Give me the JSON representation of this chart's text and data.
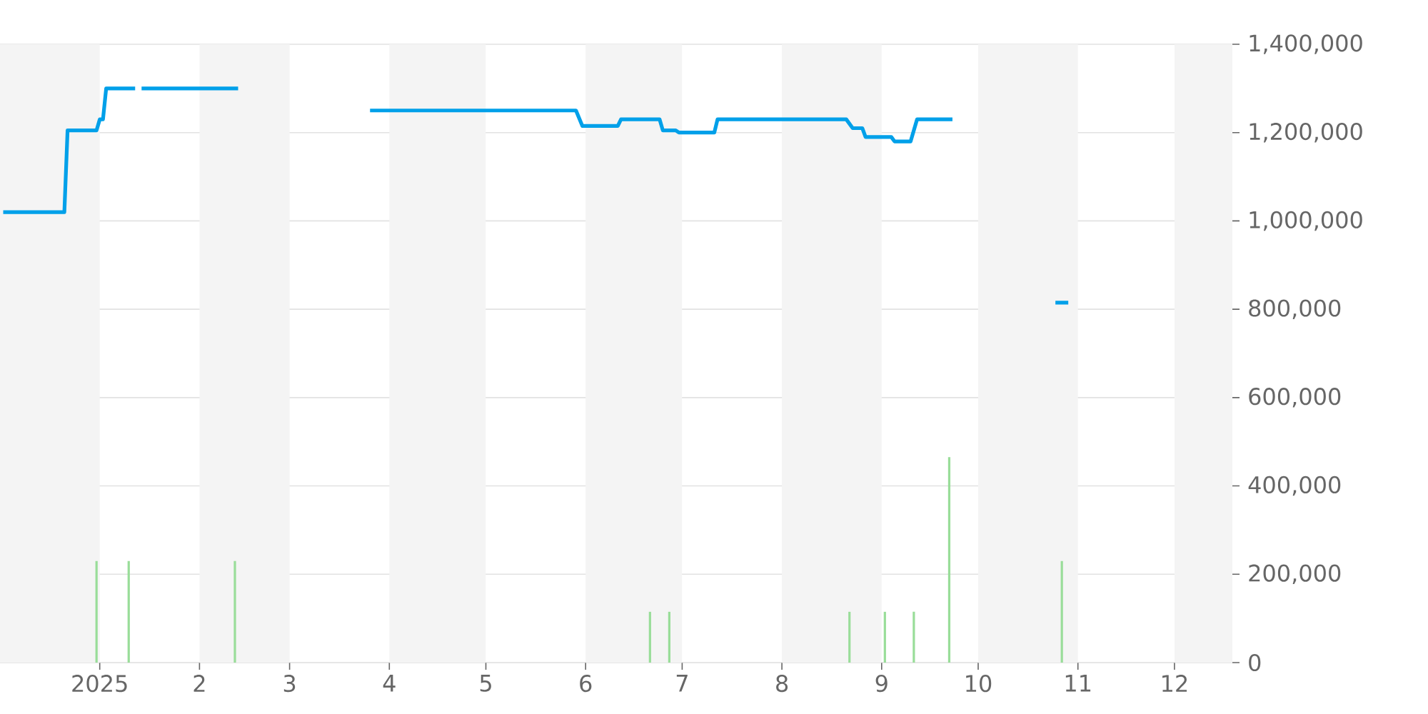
{
  "chart_data": {
    "type": "line",
    "xlim": [
      "2024-12-01",
      "2025-12-19"
    ],
    "ylim": [
      0,
      1400000
    ],
    "xticks": [
      {
        "value": "2025-01-01",
        "label": "2025"
      },
      {
        "value": "2025-02-01",
        "label": "2"
      },
      {
        "value": "2025-03-01",
        "label": "3"
      },
      {
        "value": "2025-04-01",
        "label": "4"
      },
      {
        "value": "2025-05-01",
        "label": "5"
      },
      {
        "value": "2025-06-01",
        "label": "6"
      },
      {
        "value": "2025-07-01",
        "label": "7"
      },
      {
        "value": "2025-08-01",
        "label": "8"
      },
      {
        "value": "2025-09-01",
        "label": "9"
      },
      {
        "value": "2025-10-01",
        "label": "10"
      },
      {
        "value": "2025-11-01",
        "label": "11"
      },
      {
        "value": "2025-12-01",
        "label": "12"
      }
    ],
    "yticks": [
      0,
      {
        "value": 200000,
        "label": "200,000"
      },
      {
        "value": 400000,
        "label": "400,000"
      },
      {
        "value": 600000,
        "label": "600,000"
      },
      {
        "value": 800000,
        "label": "800,000"
      },
      {
        "value": 1000000,
        "label": "1,000,000"
      },
      {
        "value": 1200000,
        "label": "1,200,000"
      },
      {
        "value": 1400000,
        "label": "1,400,000"
      }
    ],
    "grid": "y",
    "bands": [
      {
        "axis": "x",
        "from": "2024-12-01",
        "to": "2025-01-01",
        "color": "#f4f4f4"
      },
      {
        "axis": "x",
        "from": "2025-02-01",
        "to": "2025-03-01",
        "color": "#f4f4f4"
      },
      {
        "axis": "x",
        "from": "2025-04-01",
        "to": "2025-05-01",
        "color": "#f4f4f4"
      },
      {
        "axis": "x",
        "from": "2025-06-01",
        "to": "2025-07-01",
        "color": "#f4f4f4"
      },
      {
        "axis": "x",
        "from": "2025-08-01",
        "to": "2025-09-01",
        "color": "#f4f4f4"
      },
      {
        "axis": "x",
        "from": "2025-10-01",
        "to": "2025-11-01",
        "color": "#f4f4f4"
      },
      {
        "axis": "x",
        "from": "2025-12-01",
        "to": "2025-12-19",
        "color": "#f4f4f4"
      }
    ],
    "series": [
      {
        "type": "bar",
        "color": "#99dd99",
        "x": [
          "2024-12-31",
          "2025-01-10",
          "2025-02-12",
          "2025-06-21",
          "2025-06-27",
          "2025-08-22",
          "2025-09-02",
          "2025-09-11",
          "2025-09-22",
          "2025-10-27"
        ],
        "values": [
          230000,
          230000,
          230000,
          115000,
          115000,
          115000,
          115000,
          115000,
          465000,
          230000
        ]
      },
      {
        "color": "#00a0e9",
        "x": [
          "2024-12-02",
          "2024-12-21",
          "2024-12-22",
          "2024-12-31",
          "2025-01-01",
          "2025-01-02",
          "2025-01-03",
          "2025-01-12",
          "2025-01-13",
          "2025-01-14",
          "2025-02-13",
          "2025-03-01",
          "2025-03-26",
          "2025-05-29",
          "2025-05-31",
          "2025-06-11",
          "2025-06-12",
          "2025-06-24",
          "2025-06-25",
          "2025-06-29",
          "2025-06-30",
          "2025-07-11",
          "2025-07-12",
          "2025-08-21",
          "2025-08-23",
          "2025-08-26",
          "2025-08-27",
          "2025-09-04",
          "2025-09-05",
          "2025-09-10",
          "2025-09-12",
          "2025-09-23",
          "2025-10-10",
          "2025-10-25",
          "2025-10-29"
        ],
        "values": [
          1020000,
          1020000,
          1205000,
          1205000,
          1230000,
          1230000,
          1300000,
          1300000,
          null,
          1300000,
          1300000,
          null,
          1250000,
          1250000,
          1215000,
          1215000,
          1230000,
          1230000,
          1205000,
          1205000,
          1200000,
          1200000,
          1230000,
          1230000,
          1210000,
          1210000,
          1190000,
          1190000,
          1180000,
          1180000,
          1230000,
          1230000,
          null,
          815000,
          815000
        ]
      }
    ]
  }
}
